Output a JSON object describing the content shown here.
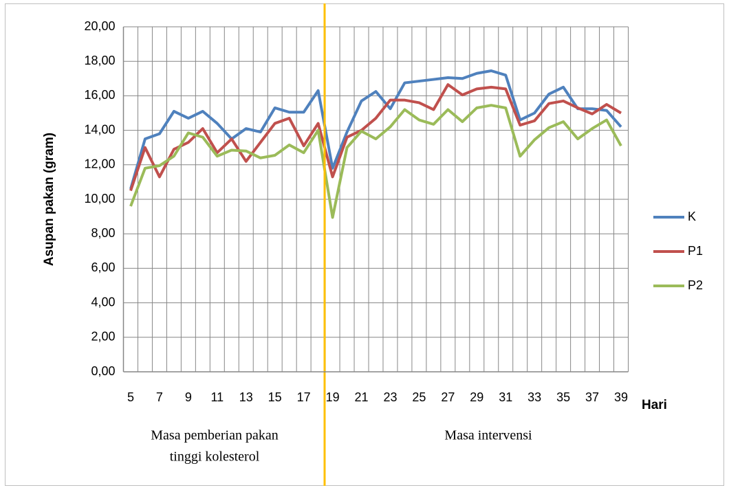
{
  "chart_data": {
    "type": "line",
    "y_label": "Asupan pakan (gram)",
    "x_label": "Hari",
    "annotations": [
      "Masa pemberian pakan",
      "tinggi kolesterol",
      "Masa intervensi"
    ],
    "categories": [
      "5",
      null,
      "7",
      null,
      "9",
      null,
      "11",
      null,
      "13",
      null,
      "15",
      null,
      "17",
      null,
      "19",
      null,
      "21",
      null,
      "23",
      null,
      "25",
      null,
      "27",
      null,
      "29",
      null,
      "31",
      null,
      "33",
      null,
      "35",
      null,
      "37",
      null,
      "39"
    ],
    "series": [
      {
        "name": "K",
        "color": "#4f81bd",
        "values": [
          10.6,
          13.5,
          13.8,
          15.1,
          14.7,
          15.1,
          14.4,
          13.5,
          14.1,
          13.9,
          15.3,
          15.05,
          15.05,
          16.3,
          11.8,
          13.9,
          15.7,
          16.25,
          15.25,
          16.75,
          16.85,
          16.95,
          17.05,
          17.0,
          17.3,
          17.45,
          17.2,
          14.6,
          15.0,
          16.1,
          16.5,
          15.25,
          15.25,
          15.15,
          14.2
        ]
      },
      {
        "name": "P1",
        "color": "#c0504d",
        "values": [
          10.5,
          13.0,
          11.3,
          12.9,
          13.3,
          14.1,
          12.7,
          13.5,
          12.2,
          13.3,
          14.4,
          14.7,
          13.1,
          14.4,
          11.3,
          13.6,
          14.0,
          14.7,
          15.75,
          15.75,
          15.6,
          15.2,
          16.65,
          16.05,
          16.4,
          16.5,
          16.4,
          14.3,
          14.55,
          15.55,
          15.7,
          15.3,
          14.95,
          15.5,
          15.0
        ]
      },
      {
        "name": "P2",
        "color": "#9bbb59",
        "values": [
          9.6,
          11.8,
          11.95,
          12.5,
          13.85,
          13.6,
          12.5,
          12.85,
          12.8,
          12.4,
          12.55,
          13.15,
          12.7,
          14.0,
          8.95,
          13.0,
          13.95,
          13.5,
          14.2,
          15.2,
          14.6,
          14.35,
          15.2,
          14.5,
          15.3,
          15.45,
          15.3,
          12.5,
          13.45,
          14.15,
          14.5,
          13.5,
          14.1,
          14.6,
          13.1
        ]
      }
    ],
    "ylim": [
      0,
      20
    ],
    "yticks": [
      {
        "value": 0,
        "label": "0,00"
      },
      {
        "value": 2,
        "label": "2,00"
      },
      {
        "value": 4,
        "label": "4,00"
      },
      {
        "value": 6,
        "label": "6,00"
      },
      {
        "value": 8,
        "label": "8,00"
      },
      {
        "value": 10,
        "label": "10,00"
      },
      {
        "value": 12,
        "label": "12,00"
      },
      {
        "value": 14,
        "label": "14,00"
      },
      {
        "value": 16,
        "label": "16,00"
      },
      {
        "value": 18,
        "label": "18,00"
      },
      {
        "value": 20,
        "label": "20,00"
      }
    ],
    "grid": true,
    "legend": "right"
  }
}
